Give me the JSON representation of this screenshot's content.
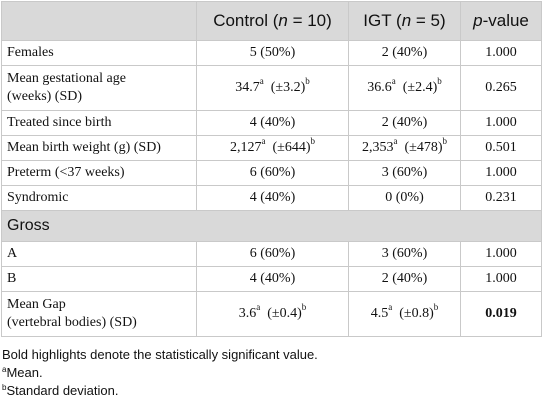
{
  "table": {
    "header": {
      "control_prefix": "Control (",
      "control_n": "n",
      "control_suffix": " = 10)",
      "igt_prefix": "IGT (",
      "igt_n": "n",
      "igt_suffix": " = 5)",
      "pvalue_p": "p",
      "pvalue_suffix": "-value"
    },
    "rows": [
      {
        "label": "Females",
        "control": "5 (50%)",
        "igt": "2 (40%)",
        "p": "1.000"
      },
      {
        "label_line1": "Mean gestational age",
        "label_line2": "(weeks) (SD)",
        "control_mean": "34.7",
        "control_sd": "(±3.2)",
        "igt_mean": "36.6",
        "igt_sd": "(±2.4)",
        "sup_mean": "a",
        "sup_sd": "b",
        "p": "0.265"
      },
      {
        "label": "Treated since birth",
        "control": "4 (40%)",
        "igt": "2 (40%)",
        "p": "1.000"
      },
      {
        "label": "Mean birth weight (g) (SD)",
        "control_mean": "2,127",
        "control_sd": "(±644)",
        "igt_mean": "2,353",
        "igt_sd": "(±478)",
        "sup_mean": "a",
        "sup_sd": "b",
        "p": "0.501"
      },
      {
        "label": "Preterm (<37 weeks)",
        "control": "6 (60%)",
        "igt": "3 (60%)",
        "p": "1.000"
      },
      {
        "label": "Syndromic",
        "control": "4 (40%)",
        "igt": "0 (0%)",
        "p": "0.231"
      }
    ],
    "section": "Gross",
    "gross_rows": [
      {
        "label": "A",
        "control": "6 (60%)",
        "igt": "3 (60%)",
        "p": "1.000"
      },
      {
        "label": "B",
        "control": "4 (40%)",
        "igt": "2 (40%)",
        "p": "1.000"
      },
      {
        "label_line1": "Mean Gap",
        "label_line2": "(vertebral bodies) (SD)",
        "control_mean": "3.6",
        "control_sd": "(±0.4)",
        "igt_mean": "4.5",
        "igt_sd": "(±0.8)",
        "sup_mean": "a",
        "sup_sd": "b",
        "p": "0.019"
      }
    ]
  },
  "footnotes": {
    "bold_note": "Bold highlights denote the statistically significant value.",
    "a_marker": "a",
    "a_text": "Mean.",
    "b_marker": "b",
    "b_text": "Standard deviation."
  }
}
